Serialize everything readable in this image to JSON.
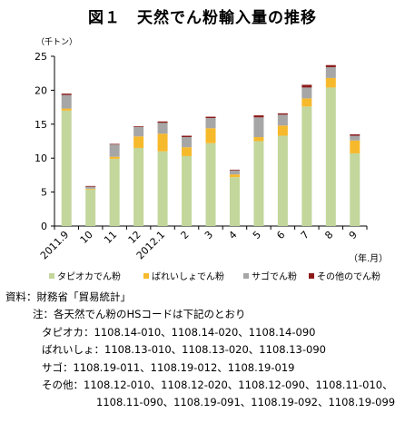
{
  "title": "図１　天然でん粉輸入量の推移",
  "colors": {
    "tapioca": "#c3d69b",
    "potato": "#f7b92c",
    "sago": "#a6a6a6",
    "other": "#8b1a1a"
  },
  "chart_data": {
    "type": "bar",
    "stacked": true,
    "title": "図１　天然でん粉輸入量の推移",
    "ylabel": "（千トン）",
    "xlabel": "（年.月）",
    "ylim": [
      0,
      25
    ],
    "yticks": [
      0,
      5,
      10,
      15,
      20,
      25
    ],
    "grid": false,
    "legend_position": "bottom",
    "categories": [
      "2011.9",
      "10",
      "11",
      "12",
      "2012.1",
      "2",
      "3",
      "4",
      "5",
      "6",
      "7",
      "8",
      "9"
    ],
    "series": [
      {
        "name": "タピオカでん粉",
        "color": "#c3d69b",
        "values": [
          17.0,
          5.4,
          9.9,
          11.5,
          11.0,
          10.3,
          12.2,
          7.2,
          12.5,
          13.3,
          17.6,
          20.4,
          10.7
        ]
      },
      {
        "name": "ばれいしょでん粉",
        "color": "#f7b92c",
        "values": [
          0.3,
          0.1,
          0.3,
          1.7,
          2.6,
          1.3,
          2.2,
          0.4,
          0.6,
          1.5,
          1.2,
          1.4,
          1.9
        ]
      },
      {
        "name": "サゴでん粉",
        "color": "#a6a6a6",
        "values": [
          2.0,
          0.3,
          1.8,
          1.4,
          1.6,
          1.5,
          1.5,
          0.6,
          2.9,
          1.6,
          1.6,
          1.6,
          0.7
        ]
      },
      {
        "name": "その他のでん粉",
        "color": "#8b1a1a",
        "values": [
          0.2,
          0.1,
          0.1,
          0.1,
          0.2,
          0.2,
          0.2,
          0.1,
          0.3,
          0.2,
          0.4,
          0.3,
          0.2
        ]
      }
    ]
  },
  "notes": {
    "line1": "資料：財務省「貿易統計」",
    "line2": "注：各天然でん粉のHSコードは下記のとおり",
    "line3": "タピオカ：1108.14-010、1108.14-020、1108.14-090",
    "line4": "ばれいしょ：1108.13-010、1108.13-020、1108.13-090",
    "line5": "サゴ：1108.19-011、1108.19-012、1108.19-019",
    "line6": "その他：1108.12-010、1108.12-020、1108.12-090、1108.11-010、",
    "line7": "1108.11-090、1108.19-091、1108.19-092、1108.19-099"
  }
}
